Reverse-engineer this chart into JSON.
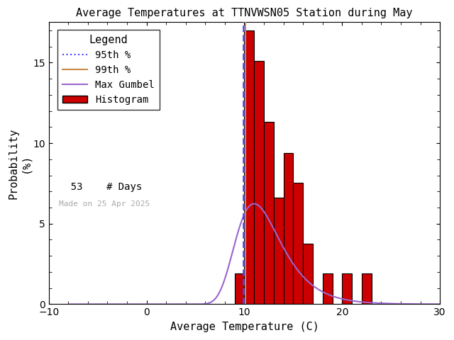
{
  "title": "Average Temperatures at TTNVWSN05 Station during May",
  "xlabel": "Average Temperature (C)",
  "ylabel1": "Probability",
  "ylabel2": "(%)",
  "xlim": [
    -10,
    30
  ],
  "ylim": [
    0,
    17.5
  ],
  "xticks": [
    -10,
    0,
    10,
    20,
    30
  ],
  "yticks": [
    0,
    5,
    10,
    15
  ],
  "bin_edges": [
    8,
    9,
    10,
    11,
    12,
    13,
    14,
    15,
    16,
    17,
    18,
    19,
    20,
    21,
    22,
    23
  ],
  "bar_heights": [
    0.0,
    1.89,
    17.0,
    15.1,
    11.3,
    6.6,
    9.4,
    7.55,
    3.77,
    0.0,
    1.89,
    0.0,
    1.89,
    0.0,
    1.89,
    0.0
  ],
  "bar_color": "#cc0000",
  "bar_edgecolor": "#000000",
  "gumbel_color": "#9966cc",
  "gumbel_mu": 11.0,
  "gumbel_beta": 2.3,
  "gumbel_scale": 39.0,
  "percentile_95": 9.9,
  "percentile_99": 10.1,
  "p95_color": "#4444ff",
  "p99_color": "#cc8844",
  "n_days": 53,
  "made_on": "Made on 25 Apr 2025",
  "background_color": "#ffffff",
  "title_fontsize": 11,
  "axis_fontsize": 11,
  "tick_fontsize": 10,
  "legend_fontsize": 10
}
